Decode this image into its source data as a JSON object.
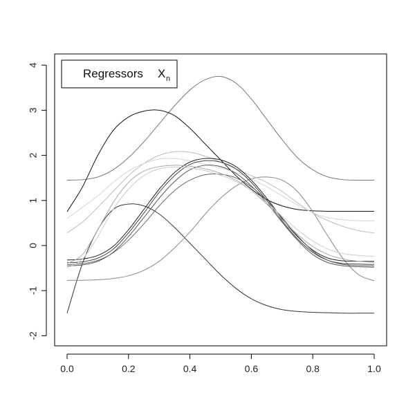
{
  "chart_data": {
    "type": "line",
    "title": "",
    "xlabel": "",
    "ylabel": "",
    "xlim": [
      0,
      1
    ],
    "ylim": [
      -2.2,
      4.3
    ],
    "x_ticks": [
      0.0,
      0.2,
      0.4,
      0.6,
      0.8,
      1.0
    ],
    "x_tick_labels": [
      "0.0",
      "0.2",
      "0.4",
      "0.6",
      "0.8",
      "1.0"
    ],
    "y_ticks": [
      -2,
      -1,
      0,
      1,
      2,
      3,
      4
    ],
    "y_tick_labels": [
      "-2",
      "-1",
      "0",
      "1",
      "2",
      "3",
      "4"
    ],
    "grid": false,
    "legend": {
      "position": "top-left",
      "label": "Regressors",
      "symbol": "X",
      "subscript": "n"
    },
    "x": [
      0,
      0.05,
      0.1,
      0.15,
      0.2,
      0.25,
      0.3,
      0.35,
      0.4,
      0.45,
      0.5,
      0.55,
      0.6,
      0.65,
      0.7,
      0.75,
      0.8,
      0.85,
      0.9,
      0.95,
      1.0
    ],
    "series": [
      {
        "color": "#777777",
        "values": [
          1.45,
          1.46,
          1.52,
          1.68,
          1.95,
          2.3,
          2.7,
          3.1,
          3.45,
          3.68,
          3.75,
          3.6,
          3.25,
          2.8,
          2.35,
          1.95,
          1.68,
          1.52,
          1.46,
          1.45,
          1.45
        ]
      },
      {
        "color": "#111111",
        "values": [
          0.75,
          1.3,
          2.0,
          2.55,
          2.85,
          2.98,
          3.0,
          2.88,
          2.6,
          2.25,
          1.9,
          1.55,
          1.25,
          1.02,
          0.88,
          0.8,
          0.77,
          0.76,
          0.76,
          0.76,
          0.76
        ]
      },
      {
        "color": "#333333",
        "values": [
          -1.5,
          -0.4,
          0.35,
          0.8,
          0.92,
          0.88,
          0.7,
          0.4,
          0.05,
          -0.3,
          -0.65,
          -0.95,
          -1.18,
          -1.33,
          -1.42,
          -1.46,
          -1.48,
          -1.49,
          -1.5,
          -1.5,
          -1.5
        ]
      },
      {
        "color": "#888888",
        "values": [
          -0.77,
          -0.77,
          -0.76,
          -0.73,
          -0.67,
          -0.55,
          -0.35,
          -0.05,
          0.3,
          0.7,
          1.05,
          1.32,
          1.48,
          1.52,
          1.45,
          1.2,
          0.75,
          0.2,
          -0.3,
          -0.65,
          -0.78
        ]
      },
      {
        "color": "#bbbbbb",
        "values": [
          0.28,
          0.52,
          0.85,
          1.2,
          1.55,
          1.82,
          2.0,
          2.08,
          2.07,
          1.98,
          1.85,
          1.7,
          1.55,
          1.4,
          1.2,
          0.95,
          0.72,
          0.55,
          0.42,
          0.33,
          0.28
        ]
      },
      {
        "color": "#d4d4d4",
        "values": [
          0.6,
          0.85,
          1.1,
          1.4,
          1.65,
          1.82,
          1.92,
          1.93,
          1.88,
          1.8,
          1.72,
          1.62,
          1.48,
          1.3,
          1.1,
          0.9,
          0.73,
          0.62,
          0.57,
          0.55,
          0.55
        ]
      },
      {
        "color": "#222222",
        "values": [
          -0.32,
          -0.3,
          -0.22,
          -0.02,
          0.35,
          0.8,
          1.25,
          1.62,
          1.85,
          1.93,
          1.9,
          1.75,
          1.45,
          1.05,
          0.6,
          0.2,
          -0.1,
          -0.28,
          -0.34,
          -0.35,
          -0.35
        ]
      },
      {
        "color": "#444444",
        "values": [
          -0.38,
          -0.36,
          -0.28,
          -0.08,
          0.28,
          0.72,
          1.18,
          1.55,
          1.8,
          1.88,
          1.85,
          1.7,
          1.4,
          1.0,
          0.55,
          0.15,
          -0.15,
          -0.33,
          -0.4,
          -0.41,
          -0.42
        ]
      },
      {
        "color": "#555555",
        "values": [
          -0.45,
          -0.43,
          -0.35,
          -0.15,
          0.2,
          0.62,
          1.05,
          1.42,
          1.68,
          1.78,
          1.75,
          1.6,
          1.32,
          0.95,
          0.52,
          0.12,
          -0.2,
          -0.38,
          -0.45,
          -0.47,
          -0.48
        ]
      },
      {
        "color": "#666666",
        "values": [
          -0.42,
          -0.4,
          -0.33,
          -0.16,
          0.12,
          0.48,
          0.88,
          1.22,
          1.45,
          1.57,
          1.58,
          1.5,
          1.3,
          1.0,
          0.62,
          0.22,
          -0.12,
          -0.33,
          -0.42,
          -0.44,
          -0.45
        ]
      },
      {
        "color": "#aaaaaa",
        "values": [
          -0.4,
          -0.2,
          0.35,
          0.95,
          1.4,
          1.65,
          1.75,
          1.78,
          1.76,
          1.7,
          1.6,
          1.45,
          1.22,
          0.92,
          0.58,
          0.25,
          -0.02,
          -0.2,
          -0.3,
          -0.35,
          -0.37
        ]
      },
      {
        "color": "#cccccc",
        "values": [
          -0.5,
          -0.3,
          0.2,
          0.8,
          1.25,
          1.55,
          1.7,
          1.74,
          1.72,
          1.66,
          1.56,
          1.42,
          1.22,
          0.95,
          0.65,
          0.35,
          0.1,
          -0.08,
          -0.18,
          -0.22,
          -0.24
        ]
      }
    ]
  }
}
